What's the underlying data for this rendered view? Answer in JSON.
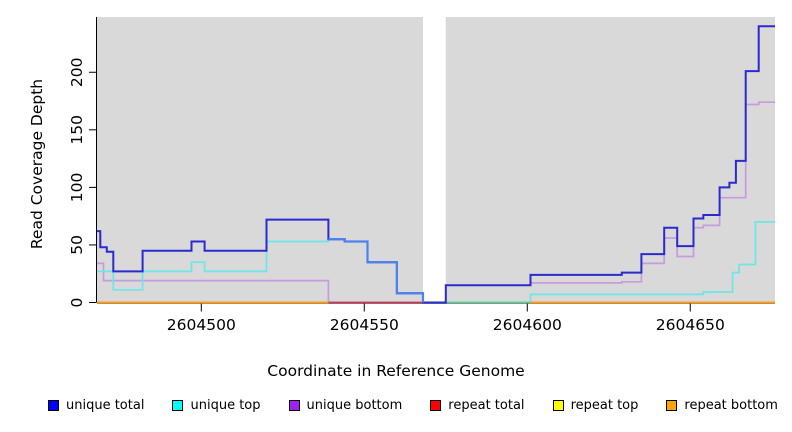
{
  "chart_data": {
    "type": "line",
    "step": true,
    "title": "",
    "xlabel": "Coordinate in Reference Genome",
    "ylabel": "Read Coverage Depth",
    "x_range": [
      2604468,
      2604676
    ],
    "y_range": [
      0,
      248
    ],
    "x_ticks": [
      2604500,
      2604550,
      2604600,
      2604650
    ],
    "y_ticks": [
      0,
      50,
      100,
      150,
      200
    ],
    "grid": false,
    "legend_position": "bottom",
    "plot_background": "#d9d9d9",
    "no_data_region": [
      2604568,
      2604575
    ],
    "series": [
      {
        "name": "unique bottom",
        "legend_color": "#a020f0",
        "line_color": "#c79bdf",
        "segments": [
          {
            "points": [
              [
                2604468,
                34
              ],
              [
                2604470,
                19
              ],
              [
                2604539,
                0
              ]
            ],
            "end": 2604568
          },
          {
            "points": [
              [
                2604601,
                17
              ],
              [
                2604629,
                18
              ],
              [
                2604635,
                34
              ],
              [
                2604642,
                56
              ],
              [
                2604646,
                40
              ],
              [
                2604651,
                65
              ],
              [
                2604654,
                67
              ],
              [
                2604659,
                91
              ],
              [
                2604667,
                172
              ],
              [
                2604671,
                174
              ]
            ],
            "end": 2604676
          }
        ]
      },
      {
        "name": "unique top",
        "legend_color": "#00ffff",
        "line_color": "#6ce6e6",
        "segments": [
          {
            "points": [
              [
                2604468,
                27
              ],
              [
                2604473,
                11
              ],
              [
                2604482,
                27
              ],
              [
                2604497,
                35
              ],
              [
                2604501,
                27
              ],
              [
                2604520,
                53
              ],
              [
                2604539,
                55
              ],
              [
                2604544,
                53
              ],
              [
                2604551,
                35
              ],
              [
                2604560,
                8
              ],
              [
                2604568,
                0
              ],
              [
                2604601,
                7
              ],
              [
                2604654,
                9
              ],
              [
                2604663,
                26
              ],
              [
                2604665,
                33
              ],
              [
                2604670,
                70
              ]
            ],
            "end": 2604676
          }
        ]
      },
      {
        "name": "repeat total",
        "legend_color": "#ff0000",
        "line_color": "#c93a52",
        "segments": [
          {
            "points": [
              [
                2604539,
                0
              ]
            ],
            "end": 2604575
          }
        ]
      },
      {
        "name": "repeat top",
        "legend_color": "#ffff00",
        "line_color": "#68c990",
        "segments": [
          {
            "points": [
              [
                2604575,
                0
              ]
            ],
            "end": 2604601
          }
        ]
      },
      {
        "name": "repeat bottom",
        "legend_color": "#ffa500",
        "line_color": "#ff9c1a",
        "segments": [
          {
            "points": [
              [
                2604468,
                0
              ]
            ],
            "end": 2604539
          },
          {
            "points": [
              [
                2604601,
                0
              ]
            ],
            "end": 2604676
          }
        ]
      },
      {
        "name": "unique total",
        "legend_color": "#0000ff",
        "line_color": "#2a2acf",
        "segments": [
          {
            "points": [
              [
                2604468,
                62
              ],
              [
                2604469,
                48
              ],
              [
                2604471,
                44
              ],
              [
                2604473,
                27
              ],
              [
                2604482,
                45
              ],
              [
                2604497,
                53
              ],
              [
                2604501,
                45
              ],
              [
                2604520,
                72
              ],
              [
                2604539,
                55
              ],
              [
                2604544,
                53
              ],
              [
                2604551,
                35
              ],
              [
                2604560,
                8
              ],
              [
                2604568,
                0
              ],
              [
                2604575,
                15
              ],
              [
                2604601,
                24
              ],
              [
                2604629,
                26
              ],
              [
                2604635,
                42
              ],
              [
                2604642,
                65
              ],
              [
                2604646,
                49
              ],
              [
                2604651,
                73
              ],
              [
                2604654,
                76
              ],
              [
                2604659,
                100
              ],
              [
                2604662,
                104
              ],
              [
                2604664,
                123
              ],
              [
                2604667,
                201
              ],
              [
                2604671,
                240
              ]
            ],
            "end": 2604676
          }
        ]
      }
    ],
    "overlap_highlight": {
      "note": "unique total coincides with unique top here (rendered light blue)",
      "color": "#4b82ee",
      "points": [
        [
          2604539,
          55
        ],
        [
          2604544,
          53
        ],
        [
          2604551,
          35
        ],
        [
          2604560,
          8
        ],
        [
          2604568,
          0
        ]
      ],
      "end": 2604568
    },
    "legend_order": [
      "unique total",
      "unique top",
      "unique bottom",
      "repeat total",
      "repeat top",
      "repeat bottom"
    ]
  }
}
